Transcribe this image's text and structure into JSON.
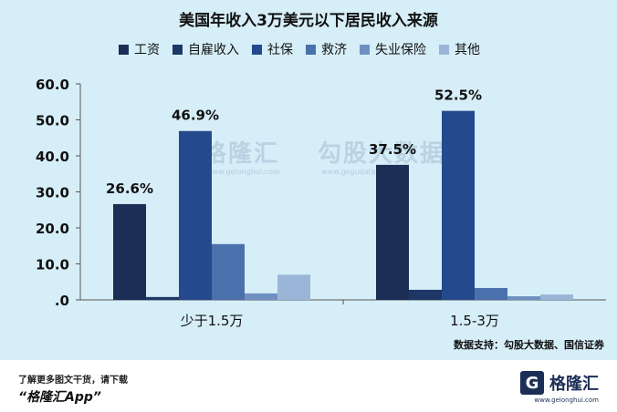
{
  "chart_data": {
    "type": "bar",
    "title": "美国年收入3万美元以下居民收入来源",
    "categories": [
      "少于1.5万",
      "1.5-3万"
    ],
    "series": [
      {
        "name": "工资",
        "values": [
          26.6,
          37.5
        ],
        "color": "#1b2e55",
        "label": true
      },
      {
        "name": "自雇收入",
        "values": [
          0.8,
          2.8
        ],
        "color": "#1d3866",
        "label": false
      },
      {
        "name": "社保",
        "values": [
          46.9,
          52.5
        ],
        "color": "#24498c",
        "label": true
      },
      {
        "name": "救济",
        "values": [
          15.5,
          3.3
        ],
        "color": "#4b71ad",
        "label": false
      },
      {
        "name": "失业保险",
        "values": [
          1.8,
          1.0
        ],
        "color": "#6f8fc0",
        "label": false
      },
      {
        "name": "其他",
        "values": [
          7.0,
          1.5
        ],
        "color": "#9ab5d8",
        "label": false
      }
    ],
    "yticks": [
      ".0",
      "10.0",
      "20.0",
      "30.0",
      "40.0",
      "50.0",
      "60.0"
    ],
    "ylim": [
      0,
      60
    ],
    "grid": false,
    "legend_position": "top"
  },
  "source_text": "数据支持：勾股大数据、国信证券",
  "watermark": {
    "brand1": "格隆汇",
    "url1": "www.gelonghui.com",
    "brand2": "勾股大数据",
    "url2": "www.gogudata.com"
  },
  "footer": {
    "line1": "了解更多图文干货，请下载",
    "line2": "“格隆汇App”",
    "brand_mark": "G",
    "brand_name": "格隆汇",
    "brand_url": "www.gelonghui.com"
  }
}
